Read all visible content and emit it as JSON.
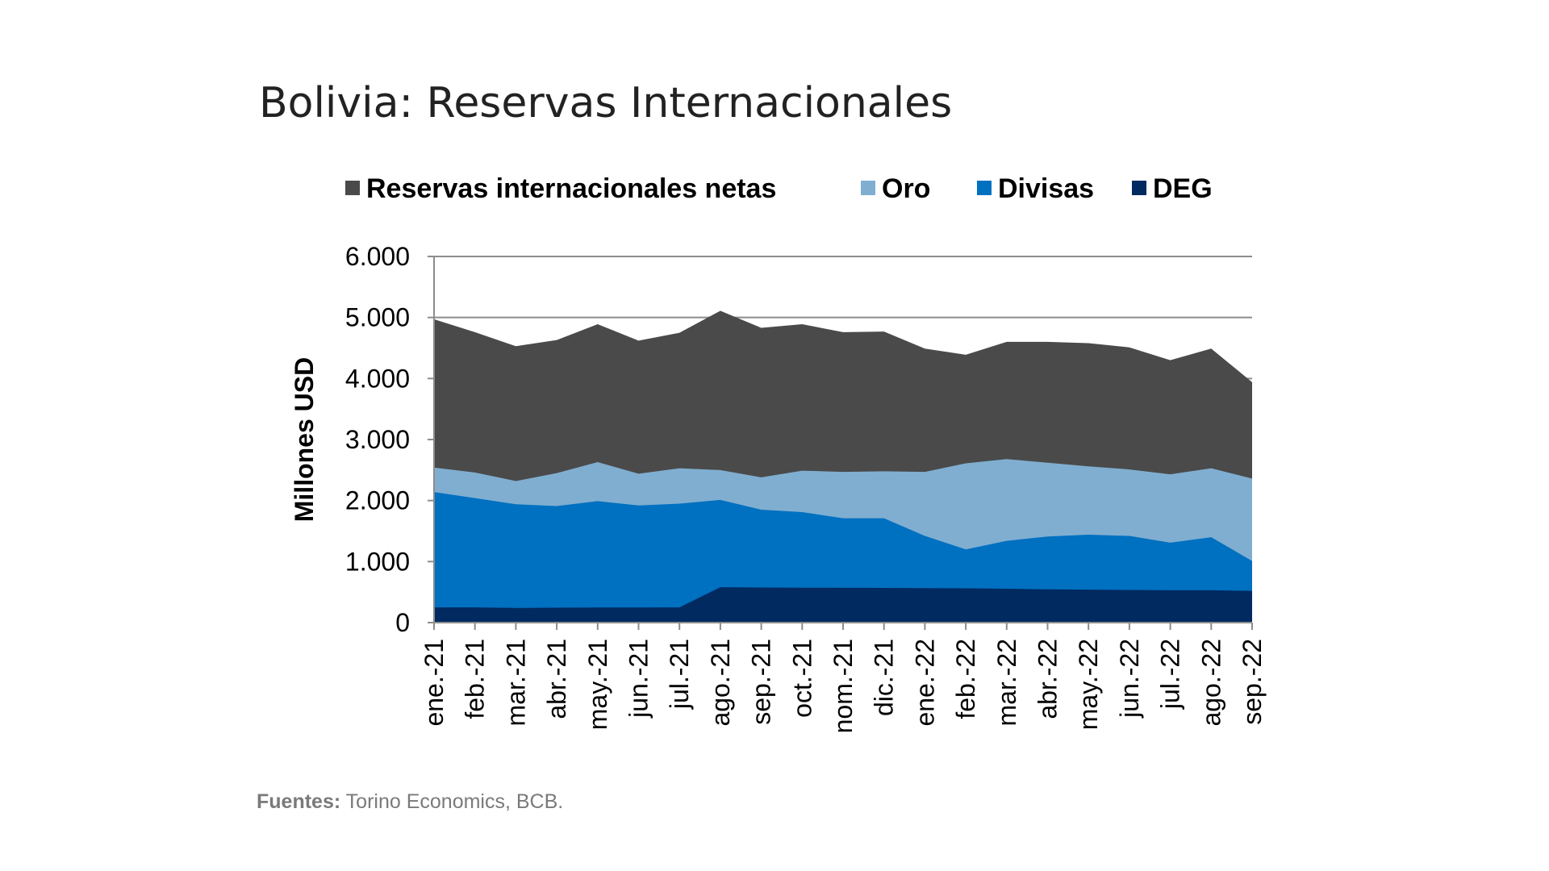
{
  "chart_data": {
    "type": "area",
    "title": "Bolivia: Reservas Internacionales",
    "xlabel": "",
    "ylabel": "Millones USD",
    "ylim": [
      0,
      6000
    ],
    "yticks": [
      "0",
      "1.000",
      "2.000",
      "3.000",
      "4.000",
      "5.000",
      "6.000"
    ],
    "ytick_values": [
      0,
      1000,
      2000,
      3000,
      4000,
      5000,
      6000
    ],
    "grid": true,
    "legend": "top",
    "categories": [
      "ene.-21",
      "feb.-21",
      "mar.-21",
      "abr.-21",
      "may.-21",
      "jun.-21",
      "jul.-21",
      "ago.-21",
      "sep.-21",
      "oct.-21",
      "nom.-21",
      "dic.-21",
      "ene.-22",
      "feb.-22",
      "mar.-22",
      "abr.-22",
      "may.-22",
      "jun.-22",
      "jul.-22",
      "ago.-22",
      "sep.-22"
    ],
    "series": [
      {
        "name": "Reservas internacionales netas",
        "color": "#4a4a4a",
        "values": [
          4970,
          4760,
          4530,
          4630,
          4890,
          4620,
          4750,
          5110,
          4830,
          4890,
          4760,
          4770,
          4490,
          4390,
          4600,
          4600,
          4580,
          4510,
          4300,
          4490,
          3940
        ]
      },
      {
        "name": "Oro",
        "color": "#80aed0",
        "values": [
          2540,
          2460,
          2320,
          2450,
          2630,
          2440,
          2530,
          2500,
          2380,
          2490,
          2470,
          2480,
          2470,
          2610,
          2680,
          2620,
          2560,
          2510,
          2430,
          2530,
          2360
        ]
      },
      {
        "name": "Divisas",
        "color": "#0070c0",
        "values": [
          2140,
          2040,
          1940,
          1910,
          1990,
          1920,
          1950,
          2010,
          1850,
          1810,
          1710,
          1710,
          1420,
          1200,
          1340,
          1410,
          1440,
          1420,
          1310,
          1400,
          1010
        ]
      },
      {
        "name": "DEG",
        "color": "#002a60",
        "values": [
          250,
          250,
          240,
          245,
          248,
          248,
          250,
          580,
          575,
          572,
          570,
          568,
          565,
          562,
          555,
          545,
          540,
          535,
          530,
          530,
          520
        ]
      }
    ]
  },
  "footer": {
    "label": "Fuentes:",
    "text": " Torino Economics, BCB."
  }
}
